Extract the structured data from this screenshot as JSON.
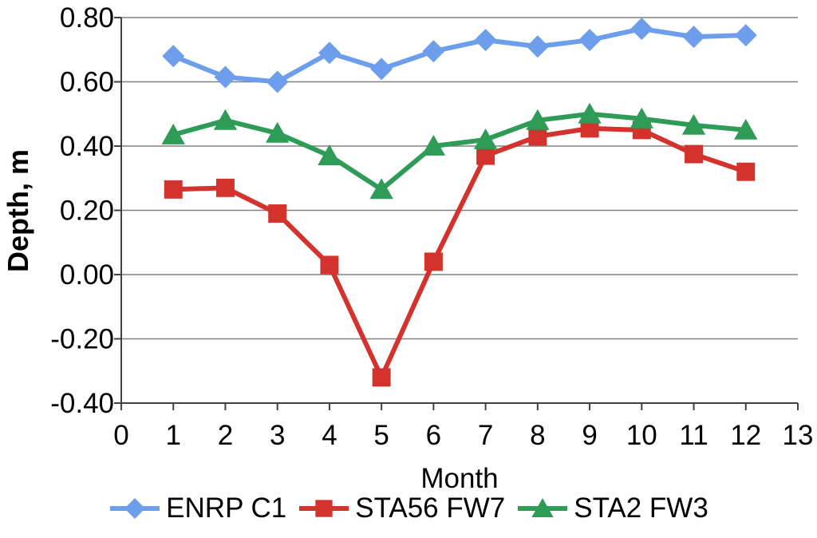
{
  "chart_data": {
    "type": "line",
    "title": "",
    "xlabel": "Month",
    "ylabel": "Depth, m",
    "xlim": [
      0,
      13
    ],
    "ylim": [
      -0.4,
      0.8
    ],
    "grid": "horizontal",
    "legend_position": "bottom",
    "x_tick_labels": [
      "0",
      "1",
      "2",
      "3",
      "4",
      "5",
      "6",
      "7",
      "8",
      "9",
      "10",
      "11",
      "12",
      "13"
    ],
    "y_ticks": [
      {
        "value": 0.8,
        "label": "0.80"
      },
      {
        "value": 0.6,
        "label": "0.60"
      },
      {
        "value": 0.4,
        "label": "0.40"
      },
      {
        "value": 0.2,
        "label": "0.20"
      },
      {
        "value": 0.0,
        "label": "0.00"
      },
      {
        "value": -0.2,
        "label": "-0.20"
      },
      {
        "value": -0.4,
        "label": "-0.40"
      }
    ],
    "x": [
      1,
      2,
      3,
      4,
      5,
      6,
      7,
      8,
      9,
      10,
      11,
      12
    ],
    "series": [
      {
        "name": "ENRP C1",
        "marker": "diamond",
        "color": "#6D9EEB",
        "values": [
          0.68,
          0.615,
          0.6,
          0.69,
          0.64,
          0.695,
          0.73,
          0.71,
          0.73,
          0.765,
          0.74,
          0.745
        ]
      },
      {
        "name": "STA56 FW7",
        "marker": "square",
        "color": "#D3322D",
        "values": [
          0.265,
          0.27,
          0.19,
          0.03,
          -0.32,
          0.04,
          0.37,
          0.43,
          0.455,
          0.45,
          0.375,
          0.32
        ]
      },
      {
        "name": "STA2 FW3",
        "marker": "triangle",
        "color": "#2E9B57",
        "values": [
          0.435,
          0.48,
          0.44,
          0.37,
          0.265,
          0.4,
          0.42,
          0.48,
          0.5,
          0.485,
          0.465,
          0.45
        ]
      }
    ],
    "axis_color": "#404040",
    "grid_color": "#808080",
    "text_color": "#000000"
  }
}
